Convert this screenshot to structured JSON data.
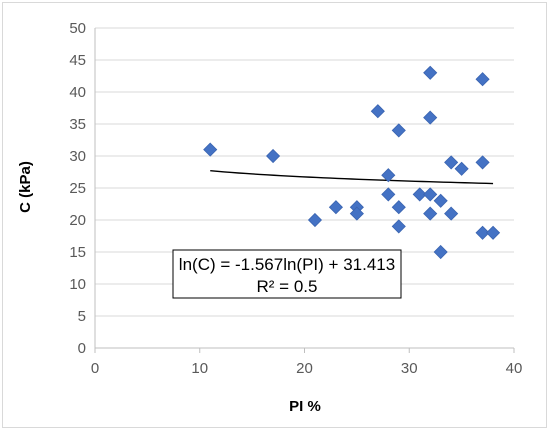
{
  "chart_data": {
    "type": "scatter",
    "title": "",
    "xlabel": "PI %",
    "ylabel": "C (kPa)",
    "xlim": [
      0,
      40
    ],
    "ylim": [
      0,
      50
    ],
    "x_ticks": [
      0,
      10,
      20,
      30,
      40
    ],
    "y_ticks": [
      0,
      5,
      10,
      15,
      20,
      25,
      30,
      35,
      40,
      45,
      50
    ],
    "grid": "horizontal",
    "marker": "diamond",
    "marker_color": "#4472C4",
    "trendline_color": "#000000",
    "points": [
      [
        11,
        31
      ],
      [
        17,
        30
      ],
      [
        21,
        20
      ],
      [
        23,
        22
      ],
      [
        25,
        22
      ],
      [
        25,
        21
      ],
      [
        27,
        37
      ],
      [
        28,
        27
      ],
      [
        28,
        24
      ],
      [
        29,
        34
      ],
      [
        29,
        22
      ],
      [
        29,
        19
      ],
      [
        31,
        24
      ],
      [
        32,
        43
      ],
      [
        32,
        36
      ],
      [
        32,
        24
      ],
      [
        32,
        21
      ],
      [
        33,
        23
      ],
      [
        33,
        15
      ],
      [
        34,
        29
      ],
      [
        34,
        21
      ],
      [
        35,
        28
      ],
      [
        37,
        42
      ],
      [
        37,
        29
      ],
      [
        37,
        18
      ],
      [
        38,
        18
      ]
    ],
    "trendline": {
      "type": "logarithmic",
      "x_range": [
        11,
        38
      ],
      "y_at_x_start": 27.7,
      "y_at_x_end": 25.7
    },
    "annotation": {
      "equation": "ln(C) = -1.567ln(PI) + 31.413",
      "r_squared": "R² = 0.5"
    }
  }
}
